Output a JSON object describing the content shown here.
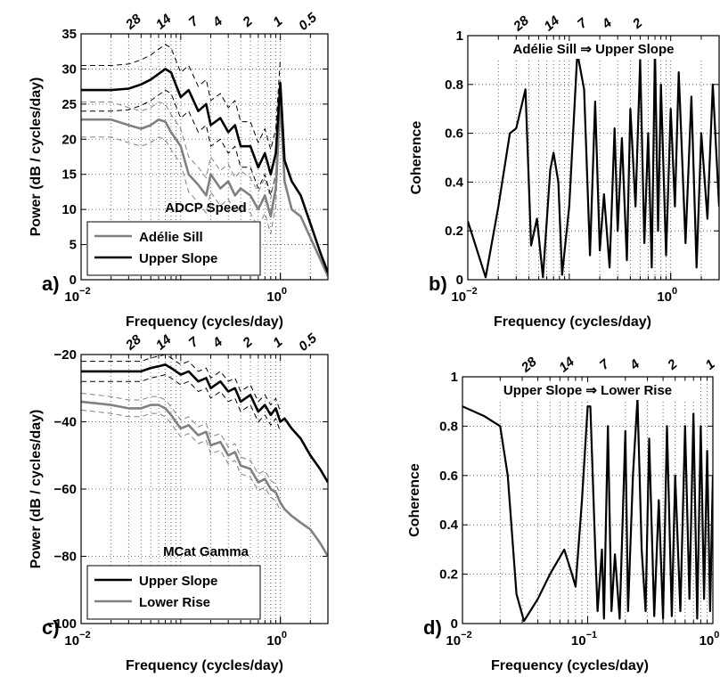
{
  "chart_data": [
    {
      "type": "line",
      "panel_label": "a)",
      "annotation": "ADCP Speed",
      "xlabel": "Frequency (cycles/day)",
      "ylabel": "Power (dB / cycles/day)",
      "log_x": true,
      "grid": true,
      "legend": "lower left",
      "xlim": [
        0.01,
        3
      ],
      "xticks": [
        {
          "value": 0.01,
          "label": "10^−2"
        },
        {
          "value": 1,
          "label": "10^0"
        }
      ],
      "ylim": [
        0,
        35
      ],
      "yticks": [
        0,
        5,
        10,
        15,
        20,
        25,
        30,
        35
      ],
      "top_ticks": [
        {
          "value": 0.0357,
          "label": "28"
        },
        {
          "value": 0.0714,
          "label": "14"
        },
        {
          "value": 0.1429,
          "label": "7"
        },
        {
          "value": 0.25,
          "label": "4"
        },
        {
          "value": 0.5,
          "label": "2"
        },
        {
          "value": 1,
          "label": "1"
        },
        {
          "value": 2,
          "label": "0.5"
        }
      ],
      "x": [
        0.01,
        0.02,
        0.03,
        0.04,
        0.05,
        0.06,
        0.07,
        0.08,
        0.1,
        0.12,
        0.15,
        0.18,
        0.2,
        0.25,
        0.3,
        0.35,
        0.4,
        0.5,
        0.6,
        0.7,
        0.8,
        0.9,
        1.0,
        1.1,
        1.3,
        1.6,
        2.0,
        2.5,
        3.0
      ],
      "series": [
        {
          "color": "#000000",
          "style": "dashed",
          "values": [
            30.5,
            30.5,
            30.7,
            31.3,
            32,
            32.8,
            33.5,
            33,
            29.5,
            30.5,
            27.5,
            28.5,
            25.5,
            26.5,
            24.5,
            25.5,
            22.5,
            22.5,
            19.5,
            21.5,
            18.5,
            21.5,
            31.5,
            null,
            null,
            null,
            null,
            null,
            null
          ]
        },
        {
          "color": "#000000",
          "style": "dashed",
          "values": [
            24,
            24,
            24.2,
            24.8,
            25.5,
            26.3,
            27,
            26.5,
            23,
            24,
            21,
            22,
            19,
            20,
            18,
            19,
            16,
            16,
            13,
            15,
            12,
            15,
            25,
            null,
            null,
            null,
            null,
            null,
            null
          ]
        },
        {
          "color": "#808080",
          "style": "dashed",
          "values": [
            25.3,
            25.3,
            24.5,
            24,
            24.5,
            25.3,
            25,
            23.5,
            21.5,
            17.5,
            16,
            14.5,
            17.5,
            15.5,
            16.5,
            14.5,
            15.5,
            14.5,
            12.5,
            14.5,
            11.5,
            15.5,
            28.5,
            null,
            null,
            null,
            null,
            null,
            null
          ]
        },
        {
          "color": "#808080",
          "style": "dashed",
          "values": [
            20.3,
            20.3,
            19.5,
            19,
            19.5,
            20.3,
            20,
            18.5,
            16.5,
            12.5,
            11,
            9.5,
            12.5,
            10.5,
            11.5,
            9.5,
            10.5,
            9.5,
            7.5,
            9.5,
            6.5,
            10.5,
            23.5,
            null,
            null,
            null,
            null,
            null,
            null
          ]
        },
        {
          "name": "Adélie Sill",
          "color": "#808080",
          "style": "solid",
          "values": [
            22.8,
            22.8,
            22,
            21.5,
            22,
            22.8,
            22.5,
            21,
            19,
            15,
            13.5,
            12,
            15,
            13,
            14,
            12,
            13,
            12,
            10,
            12,
            9,
            13,
            26,
            14,
            10,
            9,
            6,
            3,
            0.5
          ]
        },
        {
          "name": "Upper Slope",
          "color": "#000000",
          "style": "solid",
          "values": [
            27,
            27,
            27.2,
            27.8,
            28.5,
            29.3,
            30,
            29.5,
            26,
            27,
            24,
            25,
            22,
            23,
            21,
            22,
            19,
            19,
            16,
            18,
            15,
            18,
            28,
            17,
            14,
            12,
            8,
            4,
            1
          ]
        }
      ]
    },
    {
      "type": "line",
      "panel_label": "b)",
      "annotation": "Adélie Sill ⇒ Upper Slope",
      "xlabel": "Frequency (cycles/day)",
      "ylabel": "Coherence",
      "log_x": true,
      "grid": true,
      "xlim": [
        0.01,
        3
      ],
      "xticks": [
        {
          "value": 0.01,
          "label": "10^−2"
        },
        {
          "value": 1,
          "label": "10^0"
        }
      ],
      "ylim": [
        0,
        1
      ],
      "yticks": [
        0,
        0.2,
        0.4,
        0.6,
        0.8,
        1
      ],
      "top_ticks": [
        {
          "value": 0.0357,
          "label": "28"
        },
        {
          "value": 0.0714,
          "label": "14"
        },
        {
          "value": 0.1429,
          "label": "7"
        },
        {
          "value": 0.25,
          "label": "4"
        },
        {
          "value": 0.5,
          "label": "2"
        }
      ],
      "x": [
        0.01,
        0.015,
        0.02,
        0.026,
        0.03,
        0.037,
        0.042,
        0.048,
        0.055,
        0.065,
        0.07,
        0.078,
        0.085,
        0.1,
        0.12,
        0.14,
        0.16,
        0.18,
        0.2,
        0.22,
        0.25,
        0.28,
        0.3,
        0.33,
        0.37,
        0.4,
        0.45,
        0.5,
        0.55,
        0.6,
        0.65,
        0.7,
        0.75,
        0.8,
        0.9,
        1.0,
        1.1,
        1.2,
        1.4,
        1.6,
        1.8,
        2.0,
        2.3,
        2.6,
        3.0
      ],
      "series": [
        {
          "color": "#000000",
          "style": "solid",
          "values": [
            0.24,
            0.01,
            0.3,
            0.6,
            0.62,
            0.78,
            0.14,
            0.25,
            0.01,
            0.45,
            0.52,
            0.4,
            0.02,
            0.3,
            0.93,
            0.78,
            0.1,
            0.73,
            0.12,
            0.35,
            0.05,
            0.62,
            0.2,
            0.58,
            0.08,
            0.7,
            0.3,
            0.9,
            0.15,
            0.6,
            0.05,
            0.95,
            0.2,
            0.8,
            0.1,
            0.7,
            0.3,
            0.85,
            0.15,
            0.75,
            0.05,
            0.6,
            0.25,
            0.8,
            0.3
          ]
        }
      ]
    },
    {
      "type": "line",
      "panel_label": "c)",
      "annotation": "MCat Gamma",
      "xlabel": "Frequency (cycles/day)",
      "ylabel": "Power (dB / cycles/day)",
      "log_x": true,
      "grid": true,
      "legend": "lower left",
      "xlim": [
        0.01,
        3
      ],
      "xticks": [
        {
          "value": 0.01,
          "label": "10^−2"
        },
        {
          "value": 1,
          "label": "10^0"
        }
      ],
      "ylim": [
        -100,
        -20
      ],
      "yticks": [
        {
          "value": -100,
          "label": "−100"
        },
        {
          "value": -80,
          "label": "−80"
        },
        {
          "value": -60,
          "label": "−60"
        },
        {
          "value": -40,
          "label": "−40"
        },
        {
          "value": -20,
          "label": "−20"
        }
      ],
      "top_ticks": [
        {
          "value": 0.0357,
          "label": "28"
        },
        {
          "value": 0.0714,
          "label": "14"
        },
        {
          "value": 0.1429,
          "label": "7"
        },
        {
          "value": 0.25,
          "label": "4"
        },
        {
          "value": 0.5,
          "label": "2"
        },
        {
          "value": 1,
          "label": "1"
        },
        {
          "value": 2,
          "label": "0.5"
        }
      ],
      "x": [
        0.01,
        0.02,
        0.03,
        0.04,
        0.05,
        0.06,
        0.07,
        0.08,
        0.1,
        0.12,
        0.15,
        0.18,
        0.2,
        0.25,
        0.3,
        0.35,
        0.4,
        0.5,
        0.6,
        0.7,
        0.8,
        0.9,
        1.0,
        1.1,
        1.3,
        1.6,
        2.0,
        2.5,
        3.0
      ],
      "series": [
        {
          "color": "#000000",
          "style": "dashed",
          "values": [
            -22,
            -22,
            -22,
            -22,
            -21,
            -20.5,
            -20,
            -21,
            -23,
            -22,
            -25,
            -24,
            -27,
            -25,
            -28,
            -27,
            -31,
            -29,
            -34,
            -32,
            -35,
            -33,
            -37,
            null,
            null,
            null,
            null,
            null,
            null
          ]
        },
        {
          "color": "#000000",
          "style": "dashed",
          "values": [
            -28,
            -28,
            -28,
            -28,
            -27,
            -26.5,
            -26,
            -27,
            -29,
            -28,
            -31,
            -30,
            -33,
            -31,
            -34,
            -33,
            -37,
            -35,
            -40,
            -38,
            -41,
            -39,
            -43,
            null,
            null,
            null,
            null,
            null,
            null
          ]
        },
        {
          "color": "#808080",
          "style": "dashed",
          "values": [
            -31.5,
            -32.5,
            -33.5,
            -33.5,
            -32.5,
            -32.5,
            -33.5,
            -35.5,
            -39.5,
            -38.5,
            -41.5,
            -40.5,
            -44.5,
            -43.5,
            -47.5,
            -46.5,
            -50.5,
            -51.5,
            -55.5,
            -54.5,
            -57.5,
            -58.5,
            -61.5,
            null,
            null,
            null,
            null,
            null,
            null
          ]
        },
        {
          "color": "#808080",
          "style": "dashed",
          "values": [
            -36.5,
            -37.5,
            -38.5,
            -38.5,
            -37.5,
            -37.5,
            -38.5,
            -40.5,
            -44.5,
            -43.5,
            -46.5,
            -45.5,
            -49.5,
            -48.5,
            -52.5,
            -51.5,
            -55.5,
            -56.5,
            -60.5,
            -59.5,
            -62.5,
            -63.5,
            -66.5,
            null,
            null,
            null,
            null,
            null,
            null
          ]
        },
        {
          "name": "Upper Slope",
          "color": "#000000",
          "style": "solid",
          "values": [
            -25,
            -25,
            -25,
            -25,
            -24,
            -23.5,
            -23,
            -24,
            -26,
            -25,
            -28,
            -27,
            -30,
            -28,
            -31,
            -30,
            -34,
            -32,
            -37,
            -35,
            -38,
            -36,
            -40,
            -39,
            -42,
            -45,
            -50,
            -54,
            -58
          ]
        },
        {
          "name": "Lower Rise",
          "color": "#808080",
          "style": "solid",
          "values": [
            -34,
            -35,
            -36,
            -36,
            -35,
            -35,
            -36,
            -38,
            -42,
            -41,
            -44,
            -43,
            -47,
            -46,
            -50,
            -49,
            -53,
            -54,
            -58,
            -57,
            -60,
            -61,
            -64,
            -66,
            -68,
            -70,
            -72,
            -76,
            -80
          ]
        }
      ]
    },
    {
      "type": "line",
      "panel_label": "d)",
      "annotation": "Upper Slope ⇒ Lower Rise",
      "xlabel": "Frequency (cycles/day)",
      "ylabel": "Coherence",
      "log_x": true,
      "grid": true,
      "xlim": [
        0.01,
        1
      ],
      "xticks": [
        {
          "value": 0.01,
          "label": "10^−2"
        },
        {
          "value": 0.1,
          "label": "10^−1"
        },
        {
          "value": 1,
          "label": "10^0"
        }
      ],
      "ylim": [
        0,
        1
      ],
      "yticks": [
        0,
        0.2,
        0.4,
        0.6,
        0.8,
        1
      ],
      "top_ticks": [
        {
          "value": 0.0357,
          "label": "28"
        },
        {
          "value": 0.0714,
          "label": "14"
        },
        {
          "value": 0.1429,
          "label": "7"
        },
        {
          "value": 0.25,
          "label": "4"
        },
        {
          "value": 0.5,
          "label": "2"
        },
        {
          "value": 1,
          "label": "1"
        }
      ],
      "x": [
        0.01,
        0.015,
        0.02,
        0.023,
        0.027,
        0.031,
        0.04,
        0.05,
        0.065,
        0.075,
        0.08,
        0.09,
        0.1,
        0.105,
        0.115,
        0.12,
        0.13,
        0.135,
        0.145,
        0.155,
        0.165,
        0.18,
        0.2,
        0.21,
        0.23,
        0.25,
        0.27,
        0.29,
        0.31,
        0.34,
        0.37,
        0.4,
        0.43,
        0.47,
        0.5,
        0.55,
        0.6,
        0.65,
        0.7,
        0.75,
        0.8,
        0.85,
        0.9,
        0.95,
        1.0
      ],
      "series": [
        {
          "color": "#000000",
          "style": "solid",
          "values": [
            0.88,
            0.84,
            0.8,
            0.6,
            0.12,
            0.01,
            0.1,
            0.2,
            0.3,
            0.2,
            0.15,
            0.5,
            0.88,
            0.88,
            0.3,
            0.05,
            0.3,
            0.02,
            0.8,
            0.05,
            0.28,
            0.02,
            0.78,
            0.05,
            0.6,
            0.91,
            0.3,
            0.05,
            0.75,
            0.03,
            0.5,
            0.02,
            0.8,
            0.03,
            0.6,
            0.05,
            0.8,
            0.1,
            0.85,
            0.02,
            0.8,
            0.1,
            0.7,
            0.05,
            0.6
          ]
        }
      ]
    }
  ]
}
